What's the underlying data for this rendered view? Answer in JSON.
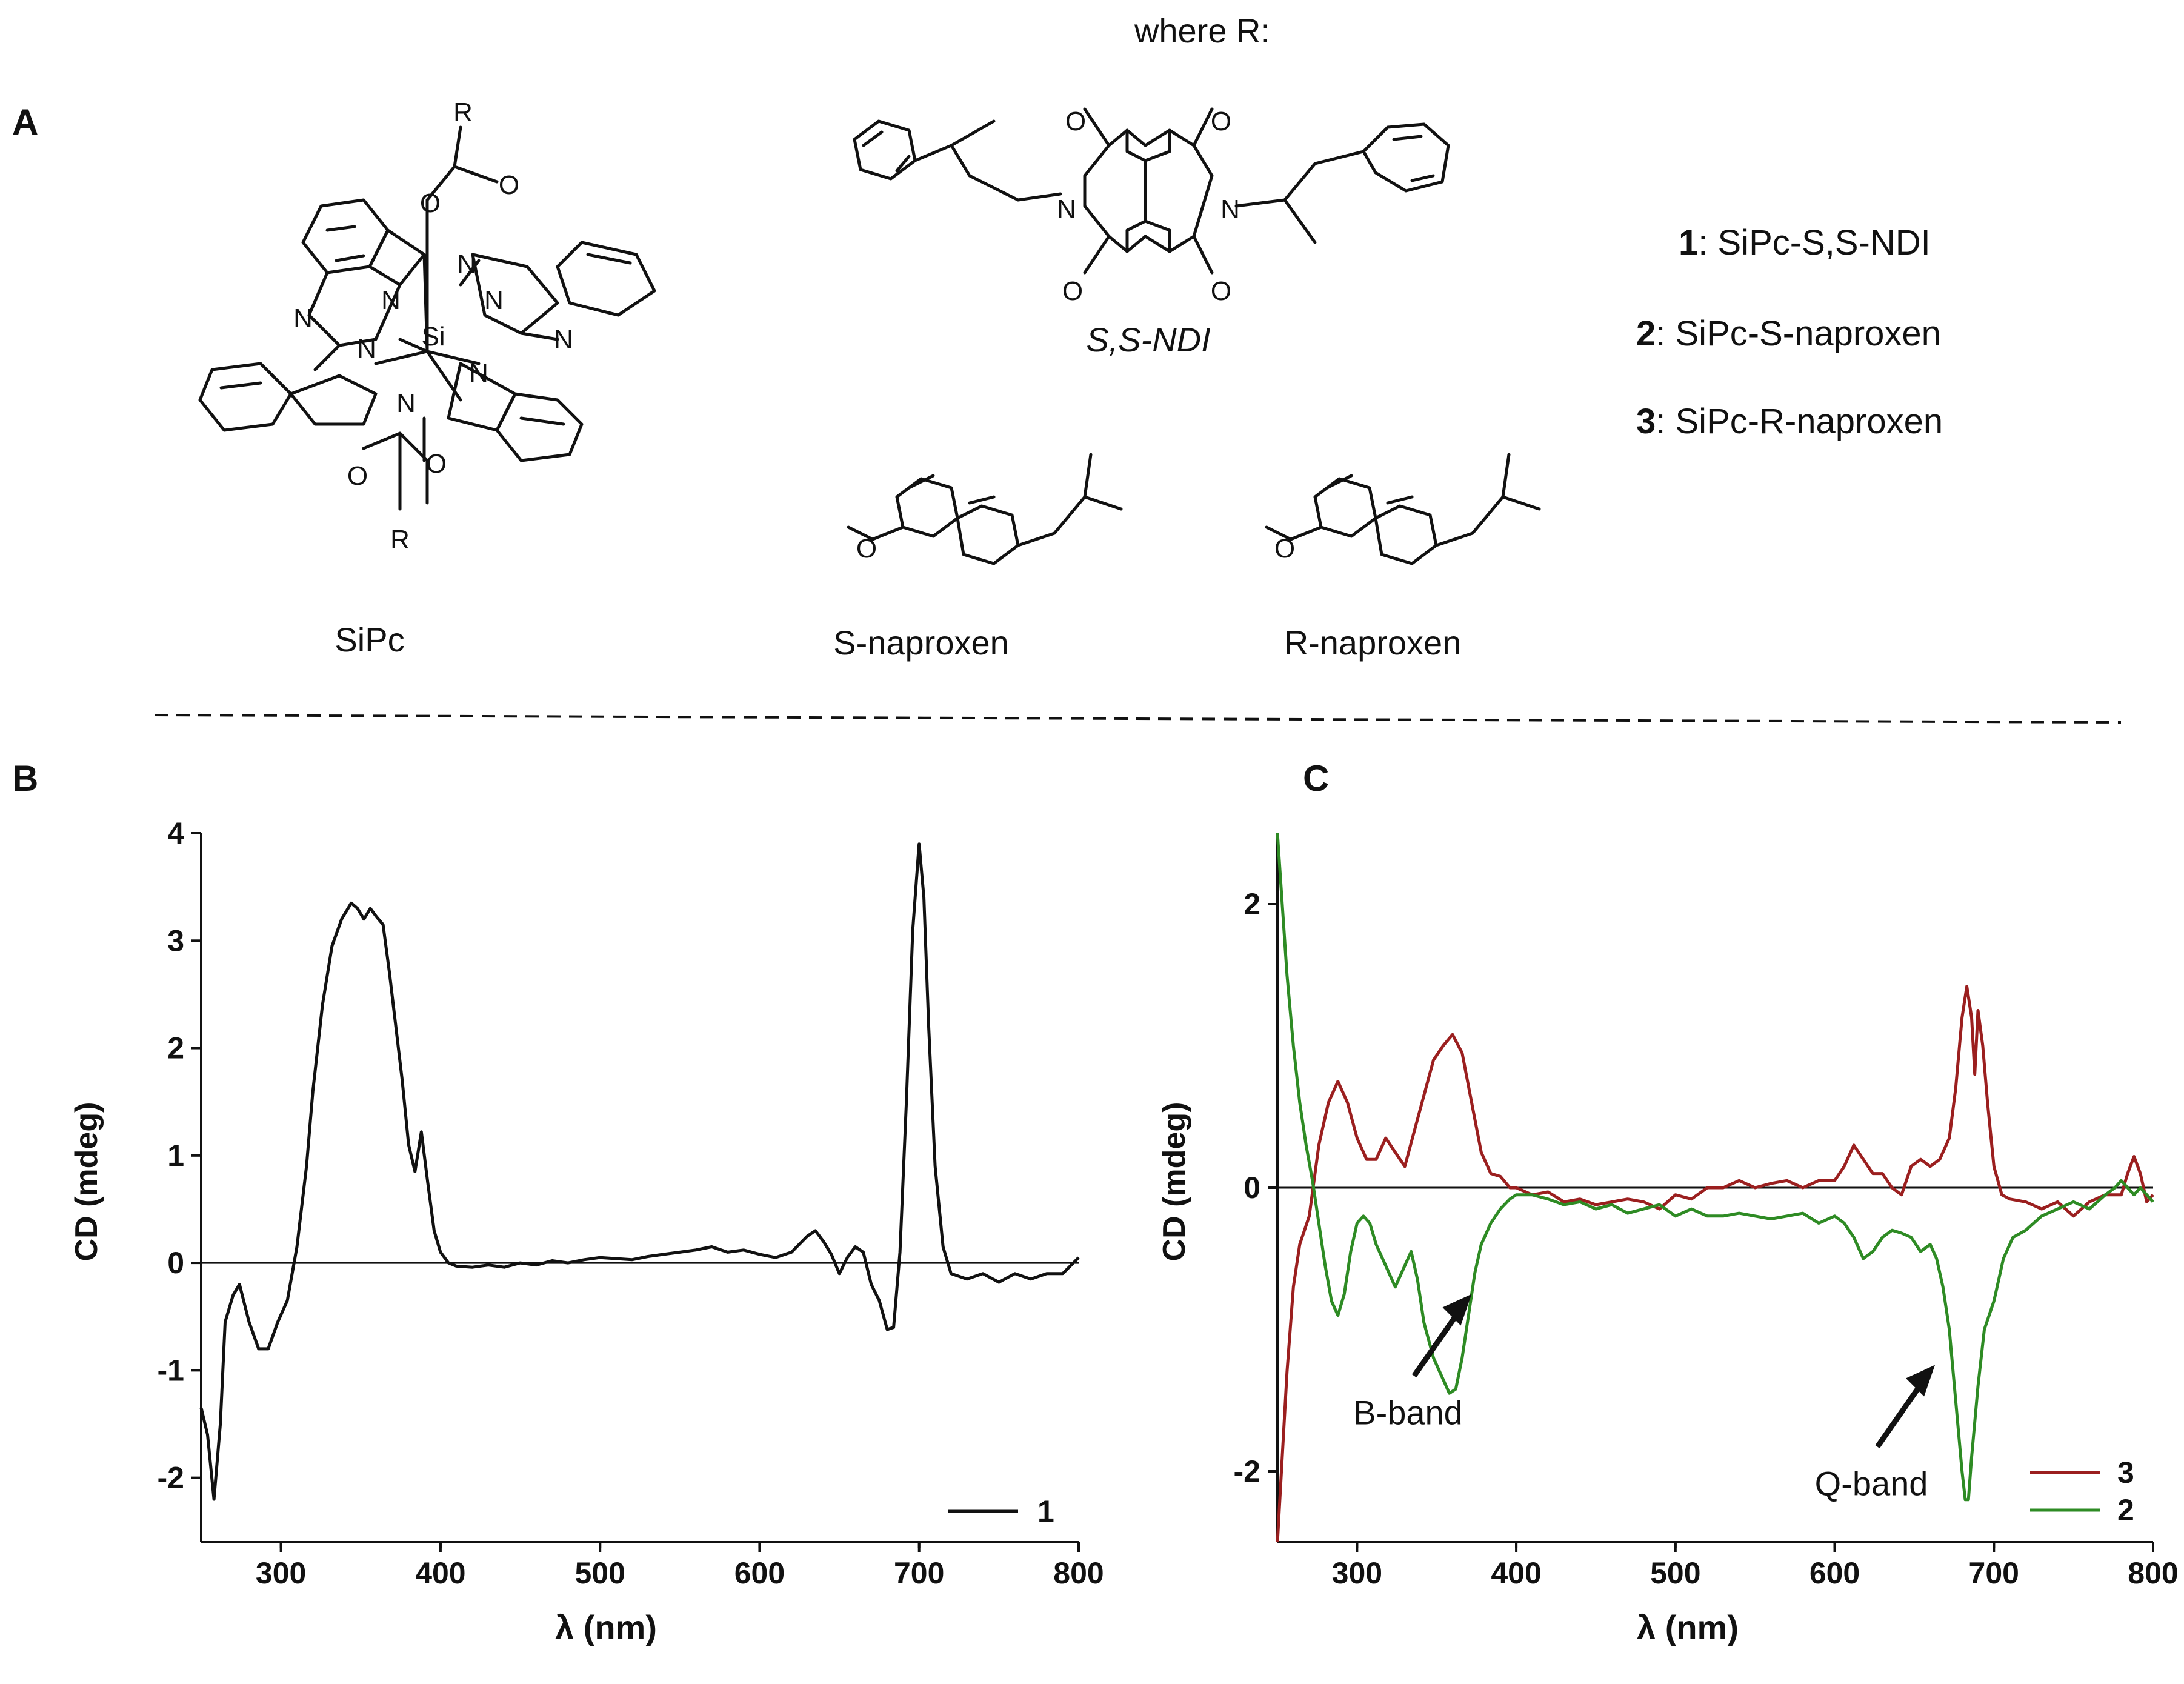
{
  "header": {
    "where_r": "where R:"
  },
  "panel_labels": {
    "a": "A",
    "b": "B",
    "c": "C"
  },
  "structures": {
    "sipc_label": "SiPc",
    "ndi_label": "S,S-NDI",
    "s_naproxen_label": "S-naproxen",
    "r_naproxen_label": "R-naproxen",
    "atoms": {
      "r": "R",
      "o": "O",
      "n": "N",
      "si": "Si"
    }
  },
  "compounds": [
    {
      "number": "1",
      "name": "SiPc-S,S-NDI"
    },
    {
      "number": "2",
      "name": "SiPc-S-naproxen"
    },
    {
      "number": "3",
      "name": "SiPc-R-naproxen"
    }
  ],
  "chart_data": [
    {
      "panel": "B",
      "type": "line",
      "xlabel": "λ (nm)",
      "ylabel": "CD (mdeg)",
      "xlim": [
        250,
        800
      ],
      "ylim": [
        -2.6,
        4.0
      ],
      "xticks": [
        300,
        400,
        500,
        600,
        700,
        800
      ],
      "yticks": [
        -2,
        -1,
        0,
        1,
        2,
        3,
        4
      ],
      "zero_line": true,
      "legend_position": "bottom-right",
      "series": [
        {
          "name": "1",
          "color": "#111111",
          "x": [
            250,
            254,
            258,
            262,
            265,
            270,
            274,
            280,
            286,
            292,
            298,
            304,
            310,
            316,
            320,
            326,
            332,
            338,
            344,
            348,
            352,
            356,
            360,
            364,
            368,
            372,
            376,
            380,
            384,
            388,
            392,
            396,
            400,
            405,
            410,
            420,
            430,
            440,
            450,
            460,
            470,
            480,
            490,
            500,
            510,
            520,
            530,
            540,
            550,
            560,
            570,
            580,
            590,
            600,
            610,
            620,
            630,
            635,
            640,
            645,
            650,
            655,
            660,
            665,
            670,
            675,
            680,
            684,
            688,
            692,
            696,
            700,
            703,
            706,
            710,
            715,
            720,
            730,
            740,
            750,
            760,
            770,
            780,
            790,
            800
          ],
          "y": [
            -1.35,
            -1.6,
            -2.2,
            -1.5,
            -0.55,
            -0.3,
            -0.2,
            -0.55,
            -0.8,
            -0.8,
            -0.55,
            -0.35,
            0.15,
            0.9,
            1.6,
            2.4,
            2.95,
            3.2,
            3.35,
            3.3,
            3.2,
            3.3,
            3.22,
            3.15,
            2.7,
            2.2,
            1.7,
            1.1,
            0.85,
            1.22,
            0.75,
            0.3,
            0.1,
            0.0,
            -0.03,
            -0.04,
            -0.02,
            -0.04,
            0.0,
            -0.02,
            0.02,
            0.0,
            0.03,
            0.05,
            0.04,
            0.03,
            0.06,
            0.08,
            0.1,
            0.12,
            0.15,
            0.1,
            0.12,
            0.08,
            0.05,
            0.1,
            0.25,
            0.3,
            0.2,
            0.08,
            -0.1,
            0.05,
            0.15,
            0.1,
            -0.2,
            -0.35,
            -0.62,
            -0.6,
            0.1,
            1.5,
            3.1,
            3.9,
            3.4,
            2.2,
            0.9,
            0.15,
            -0.1,
            -0.15,
            -0.1,
            -0.18,
            -0.1,
            -0.15,
            -0.1,
            -0.1,
            0.05
          ]
        }
      ]
    },
    {
      "panel": "C",
      "type": "line",
      "xlabel": "λ (nm)",
      "ylabel": "CD (mdeg)",
      "xlim": [
        250,
        800
      ],
      "ylim": [
        -2.5,
        2.5
      ],
      "xticks": [
        300,
        400,
        500,
        600,
        700,
        800
      ],
      "yticks": [
        -2,
        0,
        2
      ],
      "zero_line": true,
      "legend_position": "bottom-right",
      "annotations": [
        {
          "text": "B-band",
          "x": 372,
          "y": -0.75
        },
        {
          "text": "Q-band",
          "x": 663,
          "y": -1.25
        }
      ],
      "series": [
        {
          "name": "3",
          "color": "#9b1f1f",
          "x": [
            250,
            253,
            256,
            260,
            264,
            270,
            276,
            282,
            288,
            294,
            300,
            306,
            312,
            318,
            324,
            330,
            336,
            342,
            348,
            354,
            360,
            366,
            372,
            378,
            384,
            390,
            396,
            400,
            410,
            420,
            430,
            440,
            450,
            460,
            470,
            480,
            490,
            500,
            510,
            520,
            530,
            540,
            550,
            560,
            570,
            580,
            590,
            600,
            606,
            612,
            618,
            624,
            630,
            636,
            642,
            648,
            654,
            660,
            666,
            672,
            676,
            680,
            683,
            686,
            688,
            690,
            693,
            696,
            700,
            705,
            710,
            720,
            730,
            740,
            750,
            760,
            770,
            780,
            784,
            788,
            792,
            796,
            800
          ],
          "y": [
            -2.5,
            -1.9,
            -1.3,
            -0.7,
            -0.4,
            -0.2,
            0.3,
            0.6,
            0.75,
            0.6,
            0.35,
            0.2,
            0.2,
            0.35,
            0.25,
            0.15,
            0.4,
            0.65,
            0.9,
            1.0,
            1.08,
            0.95,
            0.6,
            0.25,
            0.1,
            0.08,
            0.0,
            0.0,
            -0.05,
            -0.03,
            -0.1,
            -0.08,
            -0.12,
            -0.1,
            -0.08,
            -0.1,
            -0.15,
            -0.05,
            -0.08,
            0.0,
            0.0,
            0.05,
            0.0,
            0.03,
            0.05,
            0.0,
            0.05,
            0.05,
            0.15,
            0.3,
            0.2,
            0.1,
            0.1,
            0.0,
            -0.05,
            0.15,
            0.2,
            0.15,
            0.2,
            0.35,
            0.7,
            1.2,
            1.42,
            1.2,
            0.8,
            1.25,
            1.0,
            0.6,
            0.15,
            -0.05,
            -0.08,
            -0.1,
            -0.15,
            -0.1,
            -0.2,
            -0.1,
            -0.05,
            -0.05,
            0.1,
            0.22,
            0.1,
            -0.1,
            -0.05
          ]
        },
        {
          "name": "2",
          "color": "#2e8b24",
          "x": [
            250,
            253,
            256,
            260,
            264,
            268,
            272,
            276,
            280,
            284,
            288,
            292,
            296,
            300,
            304,
            308,
            312,
            318,
            324,
            330,
            334,
            338,
            342,
            348,
            354,
            358,
            362,
            366,
            370,
            374,
            378,
            384,
            390,
            396,
            400,
            410,
            420,
            430,
            440,
            450,
            460,
            470,
            480,
            490,
            500,
            510,
            520,
            530,
            540,
            550,
            560,
            570,
            580,
            590,
            600,
            606,
            612,
            618,
            624,
            630,
            636,
            642,
            648,
            654,
            660,
            664,
            668,
            672,
            676,
            680,
            682,
            684,
            686,
            690,
            694,
            700,
            706,
            712,
            720,
            730,
            740,
            750,
            760,
            770,
            776,
            780,
            784,
            788,
            792,
            796,
            800
          ],
          "y": [
            2.5,
            2.0,
            1.5,
            1.0,
            0.6,
            0.3,
            0.05,
            -0.25,
            -0.55,
            -0.8,
            -0.9,
            -0.75,
            -0.45,
            -0.25,
            -0.2,
            -0.25,
            -0.4,
            -0.55,
            -0.7,
            -0.55,
            -0.45,
            -0.65,
            -0.95,
            -1.2,
            -1.35,
            -1.45,
            -1.42,
            -1.2,
            -0.9,
            -0.6,
            -0.4,
            -0.25,
            -0.15,
            -0.08,
            -0.05,
            -0.05,
            -0.08,
            -0.12,
            -0.1,
            -0.15,
            -0.12,
            -0.18,
            -0.15,
            -0.12,
            -0.2,
            -0.15,
            -0.2,
            -0.2,
            -0.18,
            -0.2,
            -0.22,
            -0.2,
            -0.18,
            -0.25,
            -0.2,
            -0.25,
            -0.35,
            -0.5,
            -0.45,
            -0.35,
            -0.3,
            -0.32,
            -0.35,
            -0.45,
            -0.4,
            -0.5,
            -0.7,
            -1.0,
            -1.5,
            -2.0,
            -2.2,
            -2.2,
            -1.9,
            -1.4,
            -1.0,
            -0.8,
            -0.5,
            -0.35,
            -0.3,
            -0.2,
            -0.15,
            -0.1,
            -0.15,
            -0.05,
            0.0,
            0.05,
            0.0,
            -0.05,
            0.0,
            -0.05,
            -0.1
          ]
        }
      ]
    }
  ]
}
